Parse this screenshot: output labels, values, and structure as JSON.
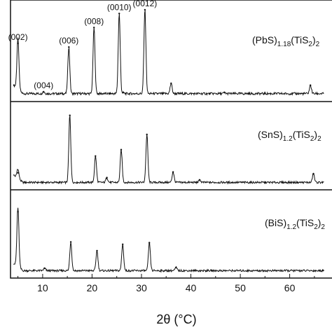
{
  "chart_data": {
    "type": "line",
    "title": "",
    "xlabel": "2θ (°C)",
    "ylabel": "",
    "xlim": [
      3.5,
      67
    ],
    "ylim": [
      0,
      1
    ],
    "x_ticks": [
      10,
      20,
      30,
      40,
      50,
      60
    ],
    "grid": false,
    "legend": "none",
    "panels": [
      {
        "label_main": "(PbS)",
        "label_sub1": "1.18",
        "label_mid": "(TiS",
        "label_sub2": "2",
        "label_end": ")",
        "label_sub3": "2",
        "baseline": 0.04,
        "peaks": [
          {
            "x": 5.0,
            "y": 0.58,
            "label": "(002)"
          },
          {
            "x": 10.2,
            "y": 0.06,
            "label": "(004)"
          },
          {
            "x": 15.3,
            "y": 0.54,
            "label": "(006)"
          },
          {
            "x": 20.4,
            "y": 0.75,
            "label": "(008)"
          },
          {
            "x": 25.5,
            "y": 0.9,
            "label": "(0010)"
          },
          {
            "x": 30.7,
            "y": 0.94,
            "label": "(0012)"
          },
          {
            "x": 26.3,
            "y": 0.05,
            "label": ""
          },
          {
            "x": 36.0,
            "y": 0.15,
            "label": ""
          },
          {
            "x": 46.8,
            "y": 0.05,
            "label": ""
          },
          {
            "x": 64.2,
            "y": 0.13,
            "label": ""
          }
        ]
      },
      {
        "label_main": "(SnS)",
        "label_sub1": "1.2",
        "label_mid": "(TiS",
        "label_sub2": "2",
        "label_end": ")",
        "label_sub3": "2",
        "baseline": 0.04,
        "peaks": [
          {
            "x": 5.0,
            "y": 0.16,
            "label": ""
          },
          {
            "x": 15.5,
            "y": 0.88,
            "label": ""
          },
          {
            "x": 20.7,
            "y": 0.37,
            "label": ""
          },
          {
            "x": 23.0,
            "y": 0.1,
            "label": ""
          },
          {
            "x": 25.9,
            "y": 0.45,
            "label": ""
          },
          {
            "x": 31.1,
            "y": 0.64,
            "label": ""
          },
          {
            "x": 36.4,
            "y": 0.17,
            "label": ""
          },
          {
            "x": 41.8,
            "y": 0.07,
            "label": ""
          },
          {
            "x": 64.8,
            "y": 0.15,
            "label": ""
          }
        ]
      },
      {
        "label_main": "(BiS)",
        "label_sub1": "1.2",
        "label_mid": "(TiS",
        "label_sub2": "2",
        "label_end": ")",
        "label_sub3": "2",
        "baseline": 0.04,
        "peaks": [
          {
            "x": 5.0,
            "y": 0.78,
            "label": ""
          },
          {
            "x": 10.4,
            "y": 0.07,
            "label": ""
          },
          {
            "x": 15.7,
            "y": 0.4,
            "label": ""
          },
          {
            "x": 21.0,
            "y": 0.29,
            "label": ""
          },
          {
            "x": 26.2,
            "y": 0.37,
            "label": ""
          },
          {
            "x": 31.6,
            "y": 0.39,
            "label": ""
          },
          {
            "x": 37.0,
            "y": 0.08,
            "label": ""
          },
          {
            "x": 66.0,
            "y": 0.04,
            "label": ""
          }
        ]
      }
    ]
  }
}
